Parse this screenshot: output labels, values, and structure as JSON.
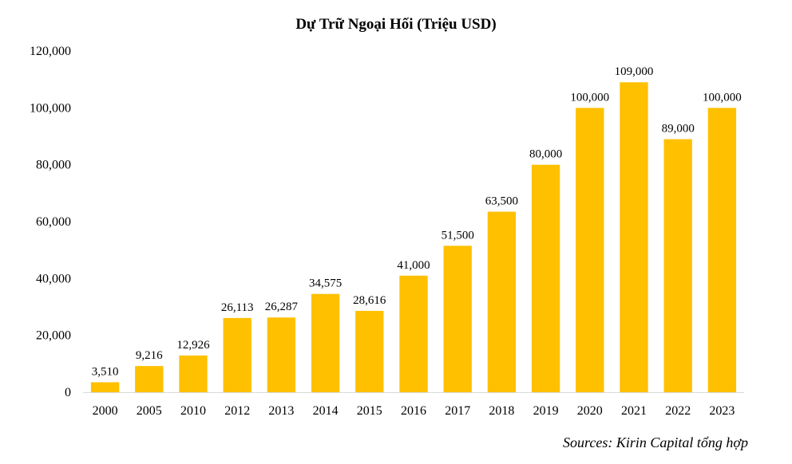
{
  "chart_data": {
    "type": "bar",
    "title": "Dự Trữ Ngoại Hối (Triệu USD)",
    "xlabel": "",
    "ylabel": "",
    "categories": [
      "2000",
      "2005",
      "2010",
      "2012",
      "2013",
      "2014",
      "2015",
      "2016",
      "2017",
      "2018",
      "2019",
      "2020",
      "2021",
      "2022",
      "2023"
    ],
    "values": [
      3510,
      9216,
      12926,
      26113,
      26287,
      34575,
      28616,
      41000,
      51500,
      63500,
      80000,
      100000,
      109000,
      89000,
      100000
    ],
    "value_labels": [
      "3,510",
      "9,216",
      "12,926",
      "26,113",
      "26,287",
      "34,575",
      "28,616",
      "41,000",
      "51,500",
      "63,500",
      "80,000",
      "100,000",
      "109,000",
      "89,000",
      "100,000"
    ],
    "ylim": [
      0,
      120000
    ],
    "yticks": [
      0,
      20000,
      40000,
      60000,
      80000,
      100000,
      120000
    ],
    "ytick_labels": [
      "0",
      "20,000",
      "40,000",
      "60,000",
      "80,000",
      "100,000",
      "120,000"
    ],
    "grid": false,
    "legend": "none",
    "colors": {
      "bar": "#FFC000",
      "axis": "#D9D9D9",
      "text": "#000000"
    }
  },
  "source_note": "Sources: Kirin Capital tổng hợp"
}
